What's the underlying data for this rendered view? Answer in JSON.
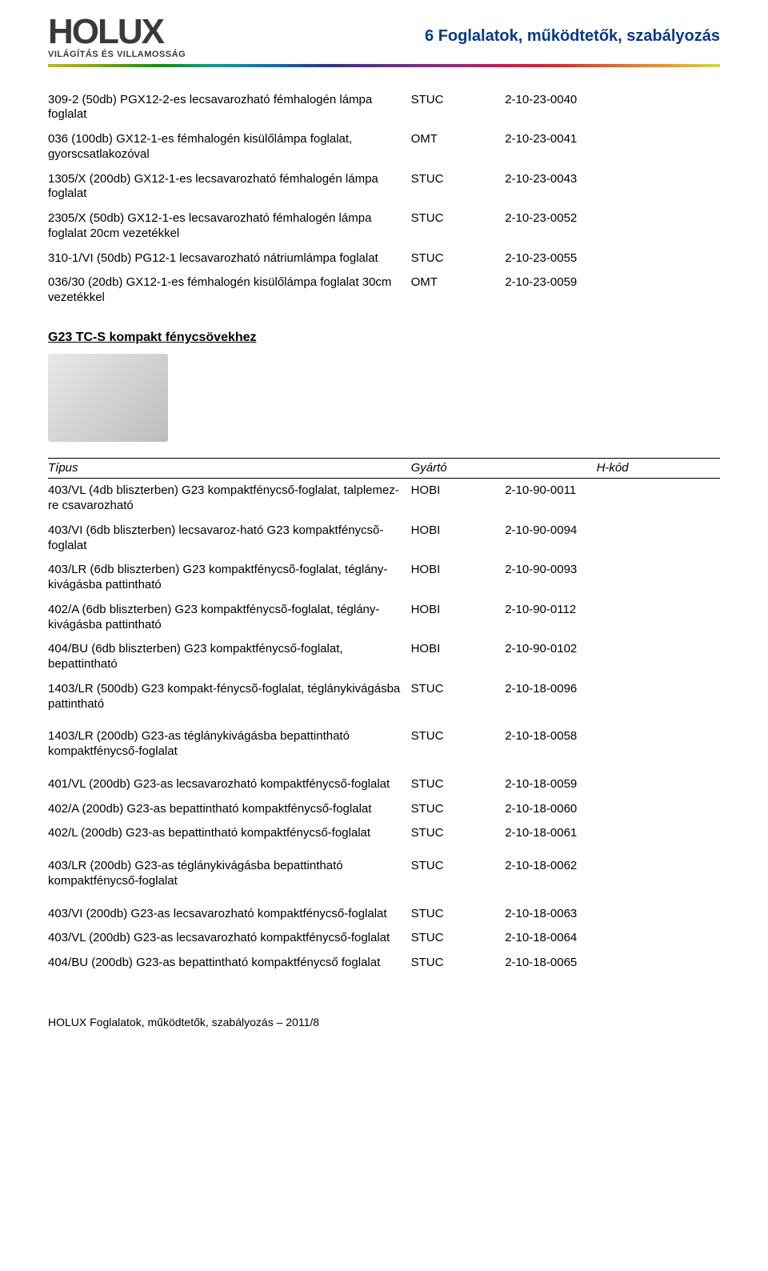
{
  "header": {
    "logo_main": "HOLUX",
    "logo_sub": "VILÁGÍTÁS ÉS VILLAMOSSÁG",
    "right_title": "6 Foglalatok, működtetők, szabályozás"
  },
  "table1_rows": [
    {
      "desc": "309-2 (50db) PGX12-2-es lecsavarozható fémhalogén lámpa foglalat",
      "brand": "STUC",
      "code": "2-10-23-0040"
    },
    {
      "desc": "036 (100db) GX12-1-es fémhalogén kisülőlámpa foglalat, gyorscsatlakozóval",
      "brand": "OMT",
      "code": "2-10-23-0041"
    },
    {
      "desc": "1305/X (200db) GX12-1-es lecsavarozható fémhalogén lámpa foglalat",
      "brand": "STUC",
      "code": "2-10-23-0043"
    },
    {
      "desc": "2305/X (50db) GX12-1-es lecsavarozható fémhalogén lámpa foglalat 20cm vezetékkel",
      "brand": "STUC",
      "code": "2-10-23-0052"
    },
    {
      "desc": "310-1/VI (50db) PG12-1 lecsavarozható nátriumlámpa foglalat",
      "brand": "STUC",
      "code": "2-10-23-0055"
    },
    {
      "desc": "036/30 (20db) GX12-1-es fémhalogén kisülőlámpa foglalat 30cm vezetékkel",
      "brand": "OMT",
      "code": "2-10-23-0059"
    }
  ],
  "section2_heading": "G23 TC-S kompakt fénycsövekhez",
  "table2_headers": {
    "type": "Típus",
    "brand": "Gyártó",
    "code": "H-kód"
  },
  "table2_rows": [
    {
      "desc": "403/VL (4db bliszterben) G23 kompaktfénycső-foglalat, talplemez-re csavarozható",
      "brand": "HOBI",
      "code": "2-10-90-0011"
    },
    {
      "desc": "403/VI (6db bliszterben) lecsavaroz-ható G23 kompaktfénycsõ-foglalat",
      "brand": "HOBI",
      "code": "2-10-90-0094"
    },
    {
      "desc": "403/LR (6db bliszterben) G23 kompaktfénycsõ-foglalat, téglány-kivágásba pattintható",
      "brand": "HOBI",
      "code": "2-10-90-0093"
    },
    {
      "desc": "402/A (6db bliszterben) G23 kompaktfénycsõ-foglalat, téglány-kivágásba pattintható",
      "brand": "HOBI",
      "code": "2-10-90-0112"
    },
    {
      "desc": "404/BU (6db bliszterben) G23 kompaktfénycső-foglalat, bepattintható",
      "brand": "HOBI",
      "code": "2-10-90-0102"
    },
    {
      "desc": "1403/LR (500db) G23 kompakt-fénycsõ-foglalat, téglánykivágásba pattintható",
      "brand": "STUC",
      "code": "2-10-18-0096"
    },
    {
      "desc": "1403/LR (200db) G23-as téglánykivágásba bepattintható kompaktfénycső-foglalat",
      "brand": "STUC",
      "code": "2-10-18-0058",
      "gap_before": true
    },
    {
      "desc": "401/VL (200db) G23-as lecsavarozható kompaktfénycső-foglalat",
      "brand": "STUC",
      "code": "2-10-18-0059",
      "gap_before": true
    },
    {
      "desc": "402/A (200db) G23-as bepattintható kompaktfénycső-foglalat",
      "brand": "STUC",
      "code": "2-10-18-0060"
    },
    {
      "desc": "402/L (200db) G23-as bepattintható kompaktfénycső-foglalat",
      "brand": "STUC",
      "code": "2-10-18-0061"
    },
    {
      "desc": "403/LR (200db) G23-as téglánykivágásba bepattintható kompaktfénycső-foglalat",
      "brand": "STUC",
      "code": "2-10-18-0062",
      "gap_before": true
    },
    {
      "desc": "403/VI (200db) G23-as lecsavarozható kompaktfénycső-foglalat",
      "brand": "STUC",
      "code": "2-10-18-0063",
      "gap_before": true
    },
    {
      "desc": "403/VL (200db) G23-as lecsavarozható kompaktfénycső-foglalat",
      "brand": "STUC",
      "code": "2-10-18-0064"
    },
    {
      "desc": "404/BU (200db) G23-as bepattintható kompaktfénycső foglalat",
      "brand": "STUC",
      "code": "2-10-18-0065"
    }
  ],
  "footer_text": "HOLUX  Foglalatok, működtetők, szabályozás – 2011/8"
}
